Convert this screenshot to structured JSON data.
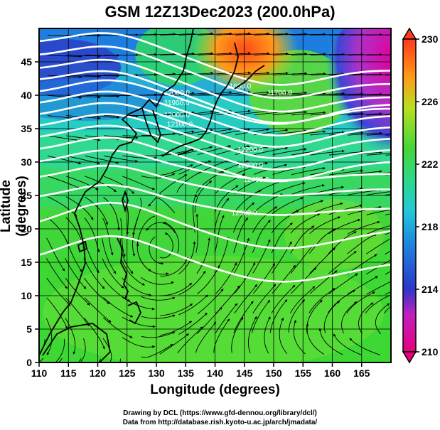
{
  "title": "GSM 12Z13Dec2023 (200.0hPa)",
  "x_axis": {
    "label": "Longitude (degrees)",
    "ticks": [
      "110",
      "115",
      "120",
      "125",
      "130",
      "135",
      "140",
      "145",
      "150",
      "155",
      "160",
      "165"
    ]
  },
  "y_axis": {
    "label": "Latitude  (degrees)",
    "ticks": [
      "0",
      "5",
      "10",
      "15",
      "20",
      "25",
      "30",
      "35",
      "40",
      "45"
    ]
  },
  "map_extent": {
    "lon": [
      110,
      170
    ],
    "lat": [
      0,
      50
    ]
  },
  "colorbar": {
    "ticks": [
      "210",
      "214",
      "218",
      "222",
      "226",
      "230"
    ],
    "range": [
      210,
      230
    ],
    "colors": [
      "#e6007e",
      "#2a36c8",
      "#22b2e6",
      "#44d638",
      "#8ae42a",
      "#ff8c1a",
      "#ff3a1a"
    ]
  },
  "contour_labels": [
    {
      "text": "11600.0",
      "lon": 144.0,
      "lat": 41.0
    },
    {
      "text": "11700.0",
      "lon": 151.0,
      "lat": 40.0
    },
    {
      "text": "12000.0",
      "lon": 133.5,
      "lat": 40.0
    },
    {
      "text": "11900.0",
      "lon": 133.5,
      "lat": 38.5
    },
    {
      "text": "12000.0",
      "lon": 133.5,
      "lat": 36.7
    },
    {
      "text": "12100.0",
      "lon": 134.0,
      "lat": 35.3
    },
    {
      "text": "12200.0",
      "lon": 146.0,
      "lat": 31.5
    },
    {
      "text": "12300.0",
      "lon": 146.0,
      "lat": 29.2
    },
    {
      "text": "12400.0",
      "lon": 147.0,
      "lat": 27.0
    },
    {
      "text": "12500.0",
      "lon": 145.0,
      "lat": 22.0
    }
  ],
  "credits": {
    "drawing": "Drawing by DCL (https://www.gfd-dennou.org/library/dcl/)",
    "data": "Data from http://database.rish.kyoto-u.ac.jp/arch/jmadata/"
  }
}
